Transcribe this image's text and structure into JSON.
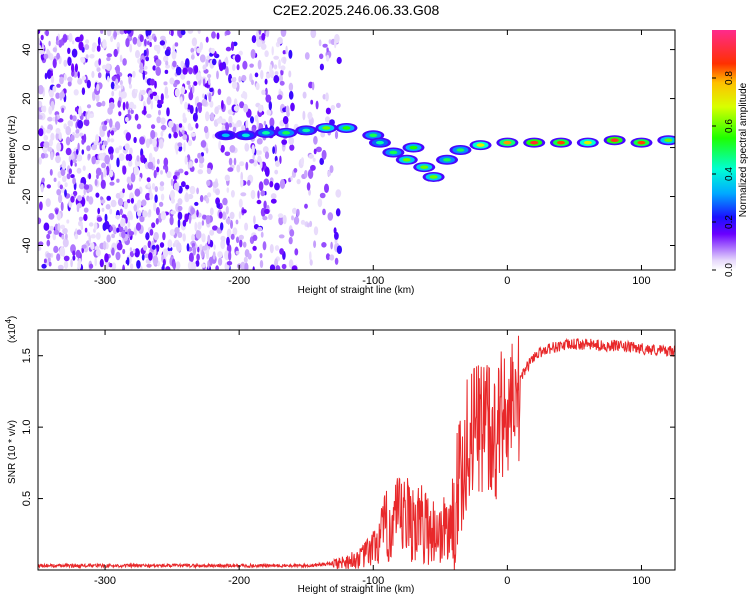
{
  "title": "C2E2.2025.246.06.33.G08",
  "colors": {
    "snr_line": "#e8282a",
    "background": "#ffffff",
    "axis": "#000000"
  },
  "chart_data": [
    {
      "type": "heatmap",
      "name": "spectrogram",
      "xlabel": "Height of straight line (km)",
      "ylabel": "Frequency (Hz)",
      "xlim": [
        -350,
        125
      ],
      "ylim": [
        -50,
        48
      ],
      "xticks": [
        -300,
        -200,
        -100,
        0,
        100
      ],
      "xtick_labels": [
        "-300",
        "-200",
        "-100",
        "0",
        "100"
      ],
      "yticks": [
        -40,
        -20,
        0,
        20,
        40
      ],
      "ytick_labels": [
        "-40",
        "-20",
        "0",
        "20",
        "40"
      ],
      "colorbar": {
        "label": "Normalized spectral amplitude",
        "range": [
          0,
          1
        ],
        "ticks": [
          0.0,
          0.2,
          0.4,
          0.6,
          0.8
        ],
        "tick_labels": [
          "0.0",
          "0.2",
          "0.4",
          "0.6",
          "0.8"
        ]
      },
      "signal_track": [
        {
          "x": -210,
          "y": 5,
          "amp": 0.35
        },
        {
          "x": -195,
          "y": 5,
          "amp": 0.4
        },
        {
          "x": -180,
          "y": 6,
          "amp": 0.45
        },
        {
          "x": -165,
          "y": 6,
          "amp": 0.5
        },
        {
          "x": -150,
          "y": 7,
          "amp": 0.45
        },
        {
          "x": -135,
          "y": 8,
          "amp": 0.6
        },
        {
          "x": -120,
          "y": 8,
          "amp": 0.55
        },
        {
          "x": -100,
          "y": 5,
          "amp": 0.5
        },
        {
          "x": -95,
          "y": 2,
          "amp": 0.45
        },
        {
          "x": -85,
          "y": -2,
          "amp": 0.5
        },
        {
          "x": -75,
          "y": -5,
          "amp": 0.6
        },
        {
          "x": -70,
          "y": 0,
          "amp": 0.55
        },
        {
          "x": -62,
          "y": -8,
          "amp": 0.6
        },
        {
          "x": -55,
          "y": -12,
          "amp": 0.6
        },
        {
          "x": -45,
          "y": -5,
          "amp": 0.5
        },
        {
          "x": -35,
          "y": -1,
          "amp": 0.5
        },
        {
          "x": -20,
          "y": 1,
          "amp": 0.7
        },
        {
          "x": 0,
          "y": 2,
          "amp": 0.8
        },
        {
          "x": 20,
          "y": 2,
          "amp": 0.9
        },
        {
          "x": 40,
          "y": 2,
          "amp": 0.85
        },
        {
          "x": 60,
          "y": 2,
          "amp": 0.7
        },
        {
          "x": 80,
          "y": 3,
          "amp": 0.9
        },
        {
          "x": 100,
          "y": 2,
          "amp": 0.85
        },
        {
          "x": 120,
          "y": 3,
          "amp": 0.6
        }
      ],
      "noise_region_x": [
        -350,
        -130
      ]
    },
    {
      "type": "line",
      "name": "snr",
      "xlabel": "Height of straight line (km)",
      "ylabel": "SNR (10 * v/v)",
      "y_multiplier_label": "(x10",
      "y_multiplier_exp": "4",
      "y_multiplier_close": ")",
      "xlim": [
        -350,
        125
      ],
      "ylim": [
        0,
        1.68
      ],
      "xticks": [
        -300,
        -200,
        -100,
        0,
        100
      ],
      "xtick_labels": [
        "-300",
        "-200",
        "-100",
        "0",
        "100"
      ],
      "yticks": [
        0.5,
        1.0,
        1.5
      ],
      "ytick_labels": [
        "0.5",
        "1.0",
        "1.5"
      ],
      "series": [
        {
          "name": "SNR",
          "x": [
            -350,
            -300,
            -250,
            -200,
            -150,
            -125,
            -110,
            -100,
            -90,
            -80,
            -70,
            -60,
            -50,
            -40,
            -35,
            -30,
            -25,
            -20,
            -15,
            -10,
            -5,
            0,
            10,
            20,
            30,
            40,
            50,
            60,
            70,
            80,
            90,
            100,
            110,
            125
          ],
          "y": [
            0.03,
            0.03,
            0.03,
            0.03,
            0.03,
            0.05,
            0.08,
            0.15,
            0.3,
            0.35,
            0.35,
            0.3,
            0.25,
            0.35,
            0.7,
            0.9,
            1.0,
            1.05,
            1.05,
            1.05,
            1.1,
            1.2,
            1.35,
            1.5,
            1.55,
            1.57,
            1.58,
            1.58,
            1.57,
            1.57,
            1.56,
            1.55,
            1.54,
            1.53
          ]
        }
      ]
    }
  ]
}
